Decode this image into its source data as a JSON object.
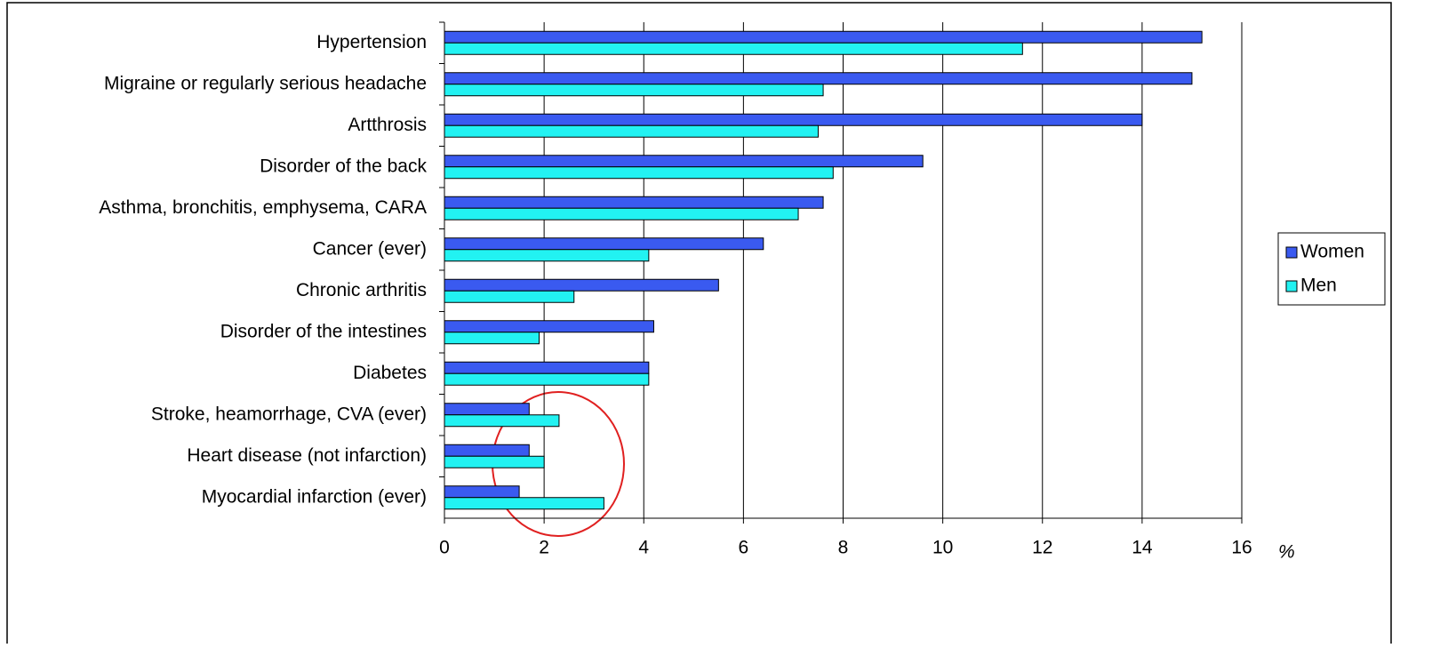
{
  "chart_data": {
    "type": "hbar",
    "categories": [
      "Hypertension",
      "Migraine or regularly serious headache",
      "Artthrosis",
      "Disorder of the back",
      "Asthma, bronchitis, emphysema, CARA",
      "Cancer (ever)",
      "Chronic arthritis",
      "Disorder of the intestines",
      "Diabetes",
      "Stroke, heamorrhage, CVA (ever)",
      "Heart disease (not infarction)",
      "Myocardial infarction (ever)"
    ],
    "series": [
      {
        "name": "Women",
        "color": "#3a5af0",
        "values": [
          15.2,
          15.0,
          14.0,
          9.6,
          7.6,
          6.4,
          5.5,
          4.2,
          4.1,
          1.7,
          1.7,
          1.5
        ]
      },
      {
        "name": "Men",
        "color": "#22f2f2",
        "values": [
          11.6,
          7.6,
          7.5,
          7.8,
          7.1,
          4.1,
          2.6,
          1.9,
          4.1,
          2.3,
          2.0,
          3.2
        ]
      }
    ],
    "x_label": "%",
    "xlim": [
      0,
      16
    ],
    "xticks": [
      0,
      2,
      4,
      6,
      8,
      10,
      12,
      14,
      16
    ],
    "grid": true,
    "legend": "right"
  }
}
